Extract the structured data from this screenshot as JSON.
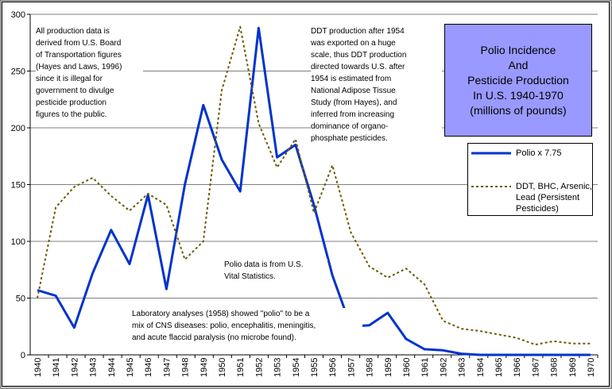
{
  "chart_data": {
    "type": "line",
    "title": "Polio Incidence\nAnd\nPesticide Production\nIn U.S. 1940-1970\n(millions of pounds)",
    "xlabel": "",
    "ylabel": "",
    "ylim": [
      0,
      300
    ],
    "yticks": [
      0,
      50,
      100,
      150,
      200,
      250,
      300
    ],
    "grid": "horizontal",
    "legend_position": "right",
    "categories": [
      "1940",
      "1941",
      "1942",
      "1943",
      "1944",
      "1945",
      "1946",
      "1947",
      "1948",
      "1949",
      "1950",
      "1951",
      "1952",
      "1953",
      "1954",
      "1955",
      "1956",
      "1957",
      "1958",
      "1959",
      "1960",
      "1961",
      "1962",
      "1963",
      "1964",
      "1965",
      "1966",
      "1967",
      "1968",
      "1969",
      "1970"
    ],
    "series": [
      {
        "name": "Polio x 7.75",
        "style": "solid",
        "color": "#0033cc",
        "values": [
          57,
          52,
          24,
          72,
          110,
          80,
          141,
          58,
          150,
          220,
          172,
          144,
          288,
          174,
          185,
          132,
          70,
          25,
          26,
          37,
          14,
          5,
          4,
          1,
          0,
          0,
          0,
          0,
          0,
          0,
          0
        ]
      },
      {
        "name": "DDT, BHC, Arsenic,\nLead (Persistent\nPesticides)",
        "style": "dashed",
        "color": "#6b5a00",
        "values": [
          50,
          130,
          148,
          156,
          140,
          127,
          142,
          132,
          84,
          100,
          233,
          289,
          204,
          165,
          190,
          125,
          167,
          108,
          78,
          68,
          76,
          62,
          30,
          23,
          21,
          18,
          15,
          9,
          12,
          10,
          10
        ]
      }
    ],
    "annotations": [
      "All production data is\nderived from U.S. Board\nof Transportation figures\n(Hayes and Laws, 1996)\nsince it is illegal for\ngovernment to divulge\npesticide production\nfigures to the public.",
      "DDT production after 1954\nwas exported on a huge\nscale, thus DDT production\ndirected towards U.S. after\n1954 is estimated  from\nNational Adipose Tissue\nStudy (from Hayes), and\ninferred from increasing\ndominance of organo-\nphosphate pesticides.",
      "Polio data is from U.S.\nVital Statistics.",
      "Laboratory analyses (1958) showed \"polio\" to be a\nmix of CNS diseases: polio, encephalitis, meningitis,\nand acute flaccid paralysis (no microbe found)."
    ]
  }
}
